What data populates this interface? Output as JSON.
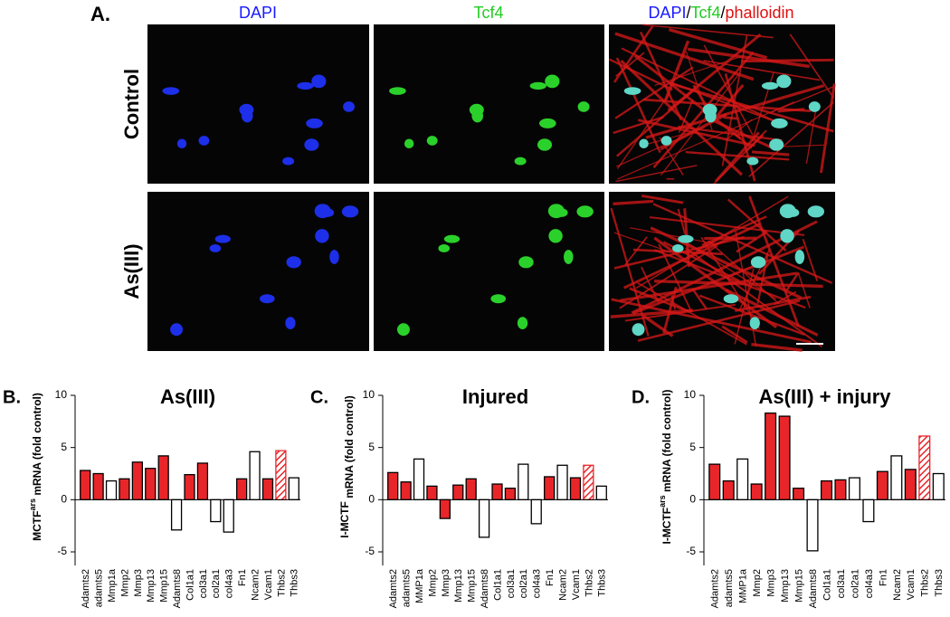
{
  "figure": {
    "panel_label": "A.",
    "columns": [
      [
        {
          "text": "DAPI",
          "color": "#1a1aff"
        }
      ],
      [
        {
          "text": "Tcf4",
          "color": "#22cc22"
        }
      ],
      [
        {
          "text": "DAPI",
          "color": "#1a1aff"
        },
        {
          "text": "/",
          "color": "#000000"
        },
        {
          "text": "Tcf4",
          "color": "#22cc22"
        },
        {
          "text": "/",
          "color": "#000000"
        },
        {
          "text": "phalloidin",
          "color": "#e01010"
        }
      ]
    ],
    "rows": [
      "Control",
      "As(III)"
    ]
  },
  "chart_data": [
    {
      "type": "bar",
      "panel_label": "B.",
      "title": "As(III)",
      "ylabel": {
        "main": "MCTF",
        "sup": "ars",
        "tail": " mRNA (fold control)"
      },
      "categories": [
        "Adamts2",
        "adamts5",
        "Mmp1a",
        "Mmp2",
        "Mmp3",
        "Mmp13",
        "Mmp15",
        "Adamts8",
        "Col1a1",
        "col3a1",
        "col2a1",
        "col4a3",
        "Fn1",
        "Ncam2",
        "Vcam1",
        "Thbs2",
        "Thbs3"
      ],
      "values": [
        2.8,
        2.5,
        1.8,
        2.0,
        3.6,
        3.0,
        4.2,
        -2.9,
        2.4,
        3.5,
        -2.1,
        -3.1,
        2.0,
        4.6,
        2.0,
        4.7,
        2.1
      ],
      "fills": [
        "#e8262a",
        "#e8262a",
        "#ffffff",
        "#e8262a",
        "#e8262a",
        "#e8262a",
        "#e8262a",
        "#ffffff",
        "#e8262a",
        "#e8262a",
        "#ffffff",
        "#ffffff",
        "#e8262a",
        "#ffffff",
        "#e8262a",
        "hatch",
        "#ffffff"
      ],
      "ylim": [
        -6.3,
        10
      ],
      "yticks": [
        -5,
        0,
        5,
        10
      ]
    },
    {
      "type": "bar",
      "panel_label": "C.",
      "title": "Injured",
      "ylabel": {
        "main": "I-MCTF",
        "sup": "",
        "tail": " mRNA (fold control)"
      },
      "categories": [
        "Adamts2",
        "adamts5",
        "MMP1a",
        "Mmp2",
        "Mmp3",
        "Mmp13",
        "Mmp15",
        "Adamts8",
        "Col1a1",
        "col3a1",
        "col2a1",
        "col4a3",
        "Fn1",
        "Ncam2",
        "Vcam1",
        "Thbs2",
        "Thbs3"
      ],
      "values": [
        2.6,
        1.7,
        3.9,
        1.3,
        -1.8,
        1.4,
        2.0,
        -3.6,
        1.5,
        1.1,
        3.4,
        -2.3,
        2.2,
        3.3,
        2.1,
        3.3,
        1.3
      ],
      "fills": [
        "#e8262a",
        "#e8262a",
        "#ffffff",
        "#e8262a",
        "#e8262a",
        "#e8262a",
        "#e8262a",
        "#ffffff",
        "#e8262a",
        "#e8262a",
        "#ffffff",
        "#ffffff",
        "#e8262a",
        "#ffffff",
        "#e8262a",
        "hatch",
        "#ffffff"
      ],
      "ylim": [
        -6.3,
        10
      ],
      "yticks": [
        -5,
        0,
        5,
        10
      ]
    },
    {
      "type": "bar",
      "panel_label": "D.",
      "title": "As(III) + injury",
      "ylabel": {
        "main": "I-MCTF",
        "sup": "ars",
        "tail": " mRNA (fold control)"
      },
      "categories": [
        "Adamts2",
        "adamts5",
        "MMP1a",
        "Mmp2",
        "Mmp3",
        "Mmp13",
        "Mmp15",
        "Adamts8",
        "Col1a1",
        "col3a1",
        "col2a1",
        "col4a3",
        "Fn1",
        "Ncam2",
        "Vcam1",
        "Thbs2",
        "Thbs3"
      ],
      "values": [
        3.4,
        1.8,
        3.9,
        1.5,
        8.3,
        8.0,
        1.1,
        -4.9,
        1.8,
        1.9,
        2.1,
        -2.1,
        2.7,
        4.2,
        2.9,
        6.1,
        2.5
      ],
      "fills": [
        "#e8262a",
        "#e8262a",
        "#ffffff",
        "#e8262a",
        "#e8262a",
        "#e8262a",
        "#e8262a",
        "#ffffff",
        "#e8262a",
        "#e8262a",
        "#ffffff",
        "#ffffff",
        "#e8262a",
        "#ffffff",
        "#e8262a",
        "hatch",
        "#ffffff"
      ],
      "ylim": [
        -6.3,
        10
      ],
      "yticks": [
        -5,
        0,
        5,
        10
      ]
    }
  ]
}
